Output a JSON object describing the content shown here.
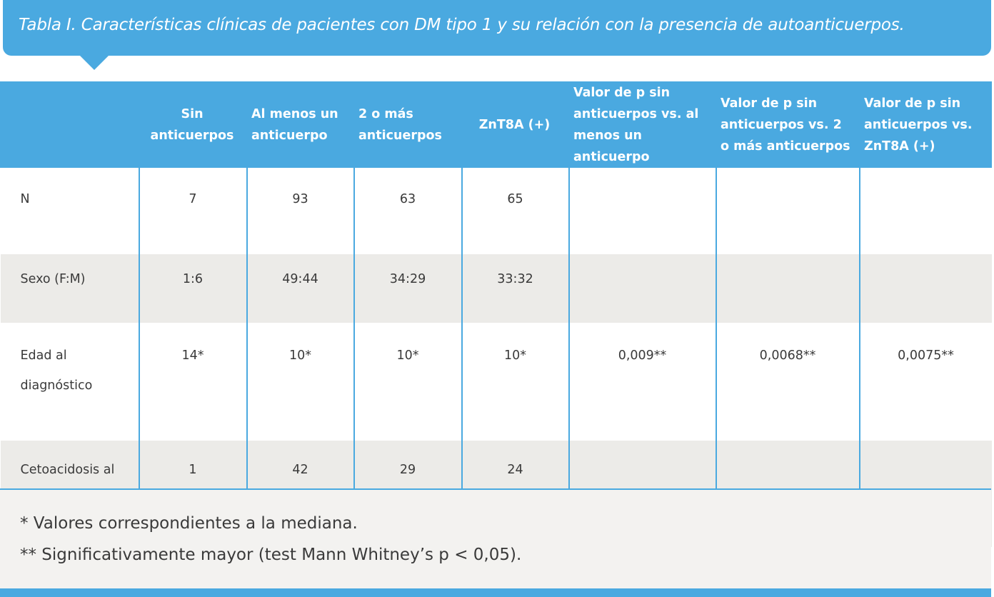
{
  "title": "Tabla I. Características clínicas de pacientes con DM tipo 1 y su relación con la presencia de autoanticuerpos.",
  "colors": {
    "accent": "#4aa9e0",
    "stripe": "#ecebe8",
    "footer_bg": "#f3f2f0"
  },
  "table": {
    "headers": [
      "",
      "Sin anticuerpos",
      "Al menos un anticuerpo",
      "2 o más anticuerpos",
      "ZnT8A (+)",
      "Valor de p sin anticuerpos vs. al menos un anticuerpo",
      "Valor de p sin anticuerpos vs. 2 o más anticuerpos",
      "Valor de p sin anticuerpos vs. ZnT8A (+)"
    ],
    "rows": [
      [
        "N",
        "7",
        "93",
        "63",
        "65",
        "",
        "",
        ""
      ],
      [
        "Sexo (F:M)",
        "1:6",
        "49:44",
        "34:29",
        "33:32",
        "",
        "",
        ""
      ],
      [
        "Edad al diagnóstico",
        "14*",
        "10*",
        "10*",
        "10*",
        "0,009**",
        "0,0068**",
        "0,0075**"
      ],
      [
        "Cetoacidosis al comienzo",
        "1",
        "42",
        "29",
        "24",
        "",
        "",
        ""
      ]
    ]
  },
  "footnotes": [
    "* Valores correspondientes a la mediana.",
    "** Significativamente mayor (test Mann Whitney’s p < 0,05)."
  ]
}
